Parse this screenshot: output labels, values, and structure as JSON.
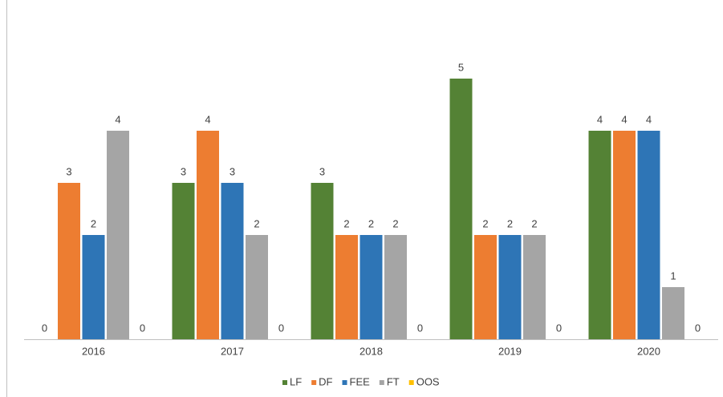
{
  "chart_data": {
    "type": "bar",
    "categories": [
      "2016",
      "2017",
      "2018",
      "2019",
      "2020"
    ],
    "series": [
      {
        "name": "LF",
        "color": "#548235",
        "values": [
          0,
          3,
          3,
          5,
          4
        ]
      },
      {
        "name": "DF",
        "color": "#ed7d31",
        "values": [
          3,
          4,
          2,
          2,
          4
        ]
      },
      {
        "name": "FEE",
        "color": "#2e75b6",
        "values": [
          2,
          3,
          2,
          2,
          4
        ]
      },
      {
        "name": "FT",
        "color": "#a5a5a5",
        "values": [
          4,
          2,
          2,
          2,
          1
        ]
      },
      {
        "name": "OOS",
        "color": "#ffc000",
        "values": [
          0,
          0,
          0,
          0,
          0
        ]
      }
    ],
    "ylim": [
      0,
      5
    ],
    "legend": "bottom"
  }
}
